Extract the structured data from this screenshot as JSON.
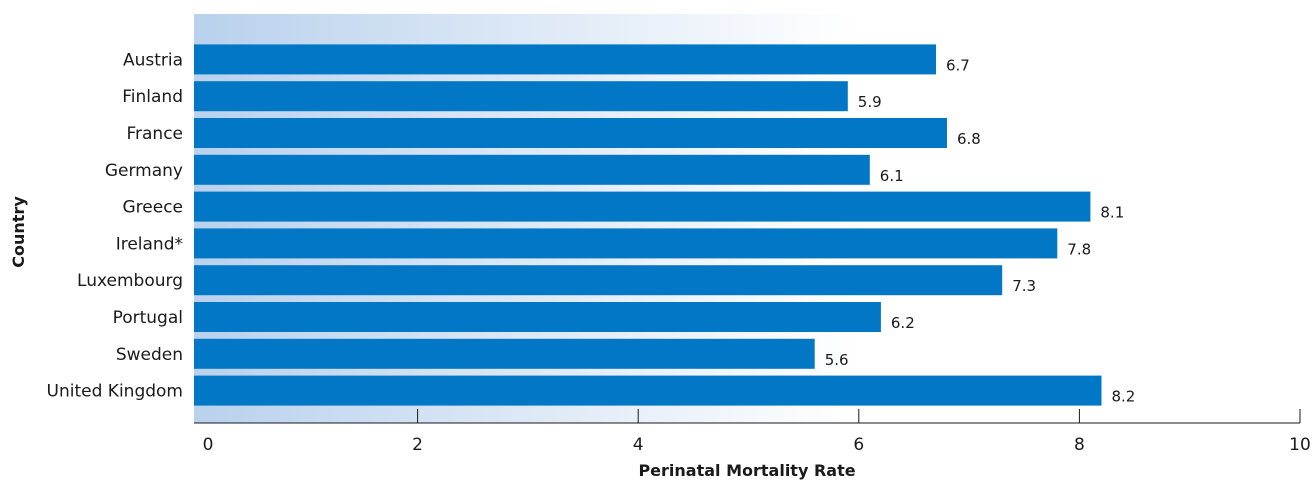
{
  "chart_data": {
    "type": "bar",
    "orientation": "horizontal",
    "categories": [
      "Austria",
      "Finland",
      "France",
      "Germany",
      "Greece",
      "Ireland*",
      "Luxembourg",
      "Portugal",
      "Sweden",
      "United Kingdom"
    ],
    "values": [
      6.7,
      5.9,
      6.8,
      6.1,
      8.1,
      7.8,
      7.3,
      6.2,
      5.6,
      8.2
    ],
    "value_labels": [
      "6.7",
      "5.9",
      "6.8",
      "6.1",
      "8.1",
      "7.8",
      "7.3",
      "6.2",
      "5.6",
      "8.2"
    ],
    "title": "",
    "xlabel": "Perinatal Mortality Rate",
    "ylabel": "Country",
    "xlim": [
      0,
      10
    ],
    "xticks": [
      0,
      2,
      4,
      6,
      8,
      10
    ],
    "xtick_labels": [
      "0",
      "2",
      "4",
      "6",
      "8",
      "10"
    ],
    "grid": false,
    "legend": "none",
    "colors": {
      "bar": "#0277c5",
      "background_gradient_start": "#b9d1ed",
      "background_gradient_end": "#ffffff",
      "axis": "#1a1a1a"
    }
  }
}
